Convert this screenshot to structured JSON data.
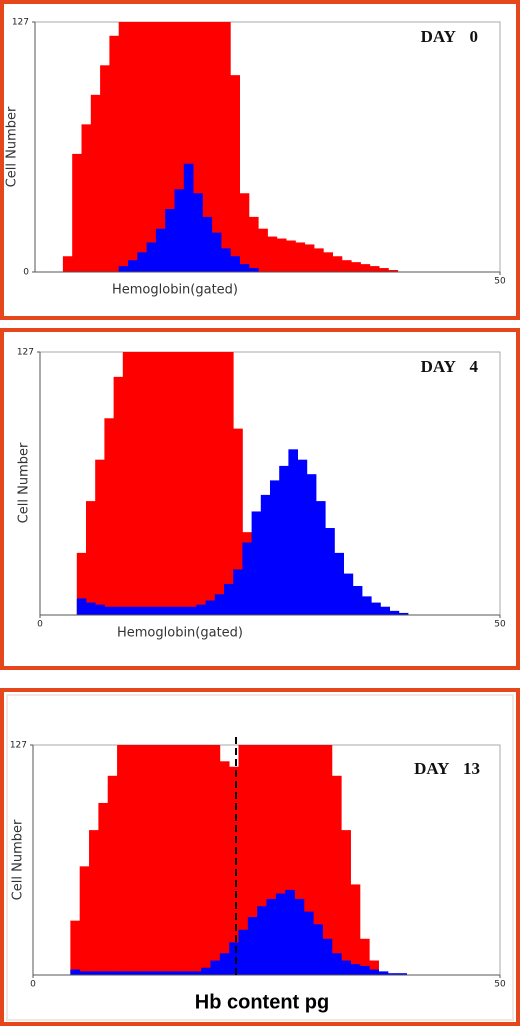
{
  "chart_data": [
    {
      "type": "histogram",
      "title": "DAY 0",
      "x_label": "Hemoglobin(gated)",
      "y_label": "Cell Number",
      "bins": [
        0,
        1,
        2,
        3,
        4,
        5,
        6,
        7,
        8,
        9,
        10,
        11,
        12,
        13,
        14,
        15,
        16,
        17,
        18,
        19,
        20,
        21,
        22,
        23,
        24,
        25,
        26,
        27,
        28,
        29,
        30,
        31,
        32,
        33,
        34,
        35,
        36,
        37,
        38,
        39,
        40,
        41,
        42,
        43,
        44,
        45,
        46,
        47,
        48,
        49,
        50
      ],
      "series": [
        {
          "color": "#ff0000",
          "values": [
            0,
            0,
            0,
            8,
            60,
            75,
            90,
            105,
            120,
            127,
            127,
            127,
            127,
            127,
            127,
            127,
            127,
            127,
            127,
            127,
            127,
            100,
            40,
            28,
            22,
            18,
            17,
            16,
            15,
            14,
            12,
            10,
            8,
            6,
            5,
            4,
            3,
            2,
            1,
            0,
            0,
            0,
            0,
            0,
            0,
            0,
            0,
            0,
            0,
            0
          ]
        },
        {
          "color": "#0000ff",
          "values": [
            0,
            0,
            0,
            0,
            0,
            0,
            0,
            0,
            0,
            3,
            6,
            10,
            15,
            22,
            32,
            42,
            55,
            40,
            28,
            20,
            12,
            8,
            4,
            2,
            0,
            0,
            0,
            0,
            0,
            0,
            0,
            0,
            0,
            0,
            0,
            0,
            0,
            0,
            0,
            0,
            0,
            0,
            0,
            0,
            0,
            0,
            0,
            0,
            0,
            0
          ]
        }
      ],
      "xlim": [
        0,
        50
      ],
      "xticks": [
        50
      ],
      "ylim": [
        0,
        127
      ],
      "yticks": [
        0,
        127
      ]
    },
    {
      "type": "histogram",
      "title": "DAY 4",
      "x_label": "Hemoglobin(gated)",
      "y_label": "Cell Number",
      "bins": [
        0,
        1,
        2,
        3,
        4,
        5,
        6,
        7,
        8,
        9,
        10,
        11,
        12,
        13,
        14,
        15,
        16,
        17,
        18,
        19,
        20,
        21,
        22,
        23,
        24,
        25,
        26,
        27,
        28,
        29,
        30,
        31,
        32,
        33,
        34,
        35,
        36,
        37,
        38,
        39,
        40,
        41,
        42,
        43,
        44,
        45,
        46,
        47,
        48,
        49,
        50
      ],
      "series": [
        {
          "color": "#ff0000",
          "values": [
            0,
            0,
            0,
            0,
            30,
            55,
            75,
            95,
            115,
            127,
            127,
            127,
            127,
            127,
            127,
            127,
            127,
            127,
            127,
            127,
            127,
            90,
            40,
            10,
            3,
            0,
            0,
            0,
            0,
            0,
            0,
            0,
            0,
            0,
            0,
            0,
            0,
            0,
            0,
            0,
            0,
            0,
            0,
            0,
            0,
            0,
            0,
            0,
            0,
            0
          ]
        },
        {
          "color": "#0000ff",
          "values": [
            0,
            0,
            0,
            0,
            8,
            6,
            5,
            4,
            4,
            4,
            4,
            4,
            4,
            4,
            4,
            4,
            4,
            5,
            7,
            10,
            15,
            22,
            35,
            50,
            58,
            65,
            72,
            80,
            75,
            68,
            55,
            42,
            30,
            20,
            14,
            9,
            6,
            4,
            2,
            1,
            0,
            0,
            0,
            0,
            0,
            0,
            0,
            0,
            0,
            0
          ]
        }
      ],
      "xlim": [
        0,
        50
      ],
      "xticks": [
        0,
        50
      ],
      "ylim": [
        0,
        127
      ],
      "yticks": [
        127
      ]
    },
    {
      "type": "histogram",
      "title": "DAY 13",
      "x_label": "Hb content pg",
      "y_label": "Cell Number",
      "bins": [
        0,
        1,
        2,
        3,
        4,
        5,
        6,
        7,
        8,
        9,
        10,
        11,
        12,
        13,
        14,
        15,
        16,
        17,
        18,
        19,
        20,
        21,
        22,
        23,
        24,
        25,
        26,
        27,
        28,
        29,
        30,
        31,
        32,
        33,
        34,
        35,
        36,
        37,
        38,
        39,
        40,
        41,
        42,
        43,
        44,
        45,
        46,
        47,
        48,
        49,
        50
      ],
      "series": [
        {
          "color": "#ff0000",
          "values": [
            0,
            0,
            0,
            0,
            30,
            60,
            80,
            95,
            110,
            127,
            127,
            127,
            127,
            127,
            127,
            127,
            127,
            127,
            127,
            127,
            118,
            115,
            127,
            127,
            127,
            127,
            127,
            127,
            127,
            127,
            127,
            127,
            110,
            80,
            50,
            20,
            8,
            0,
            0,
            0,
            0,
            0,
            0,
            0,
            0,
            0,
            0,
            0,
            0,
            0
          ]
        },
        {
          "color": "#0000ff",
          "values": [
            0,
            0,
            0,
            0,
            3,
            2,
            2,
            2,
            2,
            2,
            2,
            2,
            2,
            2,
            2,
            2,
            2,
            2,
            4,
            8,
            12,
            18,
            25,
            32,
            38,
            42,
            45,
            47,
            42,
            35,
            28,
            20,
            12,
            8,
            6,
            5,
            3,
            2,
            1,
            1,
            0,
            0,
            0,
            0,
            0,
            0,
            0,
            0,
            0,
            0
          ]
        }
      ],
      "xlim": [
        0,
        50
      ],
      "xticks": [
        0,
        50
      ],
      "ylim": [
        0,
        127
      ],
      "yticks": [
        127
      ]
    }
  ]
}
